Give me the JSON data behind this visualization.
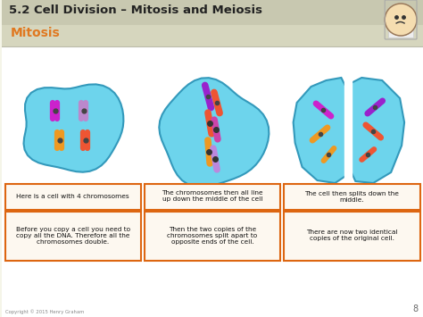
{
  "title": "5.2 Cell Division – Mitosis and Meiosis",
  "subtitle": "Mitosis",
  "bg_color": "#f5f5e8",
  "header_bg": "#d6d6be",
  "header_line_color": "#bbbbaa",
  "subtitle_color": "#e07820",
  "title_color": "#222222",
  "cell_color": "#6dd4ec",
  "cell_edge": "#3399bb",
  "box_edge": "#dd6611",
  "box_bg": "#fdf8f0",
  "text_color": "#111111",
  "content_bg": "#ffffff",
  "page_num": "8",
  "copyright": "Copyright © 2015 Henry Graham",
  "boxes": [
    [
      "Here is a cell with 4 chromosomes",
      "Before you copy a cell you need to\ncopy all the DNA. Therefore all the\nchromosomes double."
    ],
    [
      "The chromosomes then all line\nup down the middle of the cell",
      "Then the two copies of the\nchromosomes split apart to\nopposite ends of the cell."
    ],
    [
      "The cell then splits down the\nmiddle.",
      "There are now two identical\ncopies of the original cell."
    ]
  ],
  "chr1_colors": [
    "#cc22cc",
    "#bb88cc",
    "#ee9922",
    "#ee5533"
  ],
  "chr2_colors": [
    "#9922cc",
    "#ee5533",
    "#ee9922",
    "#cc88dd"
  ],
  "chr3L_colors": [
    "#cc22cc",
    "#ee9922"
  ],
  "chr3R_colors": [
    "#9922cc",
    "#ee5533"
  ]
}
